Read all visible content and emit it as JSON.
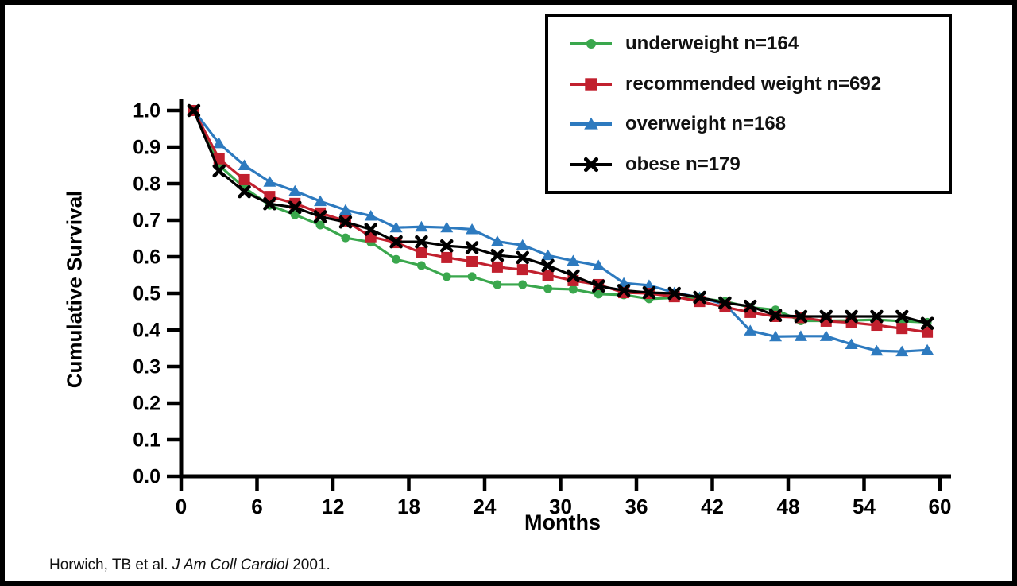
{
  "figure": {
    "citation": {
      "prefix": "Horwich, TB et al.",
      "journal": " J Am Coll Cardiol",
      "suffix": " 2001."
    }
  },
  "chart_data": {
    "type": "line",
    "title": "",
    "xlabel": "Months",
    "ylabel": "Cumulative Survival",
    "xlim": [
      0,
      60
    ],
    "ylim": [
      0.0,
      1.0
    ],
    "grid": false,
    "legend_position": "top-right",
    "x_ticks": [
      "0",
      "6",
      "12",
      "18",
      "24",
      "30",
      "36",
      "42",
      "48",
      "54",
      "60"
    ],
    "y_ticks": [
      "0.0",
      "0.1",
      "0.2",
      "0.3",
      "0.4",
      "0.5",
      "0.6",
      "0.7",
      "0.8",
      "0.9",
      "1.0"
    ],
    "x": [
      1,
      3,
      5,
      7,
      9,
      11,
      13,
      15,
      17,
      19,
      21,
      23,
      25,
      27,
      29,
      31,
      33,
      35,
      37,
      39,
      41,
      43,
      45,
      47,
      49,
      51,
      53,
      55,
      57,
      59
    ],
    "series": [
      {
        "name": "underweight",
        "label": "underweight n=164",
        "n": 164,
        "color": "#3aa74d",
        "marker": "circle",
        "values": [
          1.0,
          0.85,
          0.789,
          0.741,
          0.715,
          0.687,
          0.652,
          0.64,
          0.593,
          0.576,
          0.546,
          0.546,
          0.524,
          0.524,
          0.513,
          0.511,
          0.498,
          0.496,
          0.485,
          0.488,
          0.487,
          0.478,
          0.462,
          0.455,
          0.425,
          0.425,
          0.426,
          0.428,
          0.424,
          0.421
        ]
      },
      {
        "name": "recommended weight",
        "label": "recommended weight n=692",
        "n": 692,
        "color": "#c1202e",
        "marker": "square",
        "values": [
          1.0,
          0.868,
          0.811,
          0.765,
          0.746,
          0.72,
          0.698,
          0.655,
          0.639,
          0.611,
          0.598,
          0.587,
          0.572,
          0.565,
          0.55,
          0.535,
          0.524,
          0.502,
          0.5,
          0.491,
          0.478,
          0.463,
          0.448,
          0.437,
          0.434,
          0.424,
          0.42,
          0.413,
          0.404,
          0.394
        ]
      },
      {
        "name": "overweight",
        "label": "overweight n=168",
        "n": 168,
        "color": "#2d7abf",
        "marker": "triangle",
        "values": [
          1.0,
          0.91,
          0.85,
          0.805,
          0.78,
          0.752,
          0.728,
          0.712,
          0.68,
          0.682,
          0.68,
          0.675,
          0.642,
          0.632,
          0.604,
          0.589,
          0.576,
          0.528,
          0.522,
          0.502,
          0.489,
          0.47,
          0.398,
          0.382,
          0.383,
          0.383,
          0.361,
          0.343,
          0.341,
          0.345
        ]
      },
      {
        "name": "obese",
        "label": "obese n=179",
        "n": 179,
        "color": "#000000",
        "marker": "x",
        "values": [
          1.0,
          0.835,
          0.778,
          0.745,
          0.735,
          0.71,
          0.695,
          0.675,
          0.641,
          0.641,
          0.63,
          0.625,
          0.604,
          0.598,
          0.576,
          0.548,
          0.52,
          0.508,
          0.502,
          0.5,
          0.489,
          0.474,
          0.465,
          0.44,
          0.437,
          0.437,
          0.437,
          0.437,
          0.437,
          0.418
        ]
      }
    ]
  }
}
